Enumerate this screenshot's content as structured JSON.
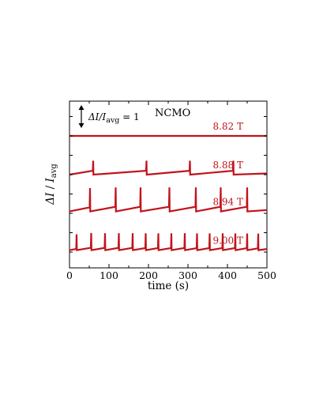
{
  "chart_data": {
    "type": "line",
    "xlabel": "time (s)",
    "ylabel": "ΔI / I_avg",
    "xlim": [
      0,
      500
    ],
    "xticks": [
      0,
      100,
      200,
      300,
      400,
      500
    ],
    "grid": false,
    "annotation": "NCMO",
    "scale_bar": {
      "label_prefix": "ΔI/I",
      "label_sub": "avg",
      "label_suffix": " = 1",
      "length": 1
    },
    "line_color": "#c0141c",
    "series": [
      {
        "name": "8.82 T",
        "offset": 0.0,
        "baseline_rise": 0.0,
        "jumps": []
      },
      {
        "name": "8.88 T",
        "offset": -1.0,
        "baseline_rise": 0.1,
        "jump_height": 0.26,
        "jumps": [
          60,
          195,
          305,
          415
        ]
      },
      {
        "name": "8.94 T",
        "offset": -1.95,
        "baseline_rise": 0.12,
        "jump_height": 0.5,
        "jumps": [
          52,
          117,
          180,
          253,
          320,
          383,
          450
        ]
      },
      {
        "name": "9.00 T",
        "offset": -2.95,
        "baseline_rise": 0.1,
        "jump_height": 0.38,
        "jumps": [
          18,
          55,
          90,
          125,
          160,
          193,
          225,
          258,
          292,
          323,
          355,
          388,
          420,
          450,
          478
        ]
      }
    ]
  }
}
